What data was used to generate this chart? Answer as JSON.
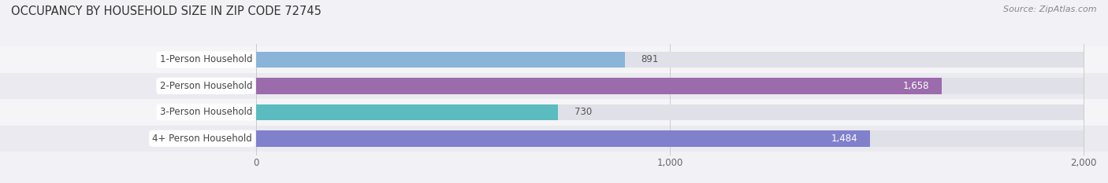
{
  "title": "OCCUPANCY BY HOUSEHOLD SIZE IN ZIP CODE 72745",
  "source": "Source: ZipAtlas.com",
  "categories": [
    "1-Person Household",
    "2-Person Household",
    "3-Person Household",
    "4+ Person Household"
  ],
  "values": [
    891,
    1658,
    730,
    1484
  ],
  "bar_colors": [
    "#8ab4d8",
    "#9b6bab",
    "#5bbcbf",
    "#8080cc"
  ],
  "label_text_colors": [
    "#555555",
    "#ffffff",
    "#555555",
    "#ffffff"
  ],
  "xlim_data": [
    0,
    2000
  ],
  "xticks": [
    0,
    1000,
    2000
  ],
  "background_color": "#f2f2f6",
  "bar_bg_color": "#e0e0e8",
  "row_bg_colors": [
    "#f5f5f8",
    "#eaeaf0"
  ],
  "title_fontsize": 10.5,
  "source_fontsize": 8,
  "bar_height": 0.62,
  "label_pill_color": "#ffffff",
  "pill_text_color": "#444444",
  "value_fontsize": 8.5,
  "category_fontsize": 8.5,
  "tick_fontsize": 8.5,
  "grid_color": "#cccccc"
}
